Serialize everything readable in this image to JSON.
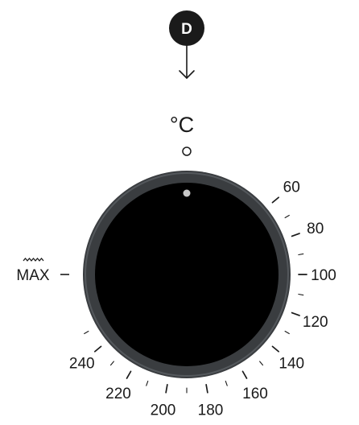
{
  "badge": {
    "letter": "D"
  },
  "unit_label": "°C",
  "max_label": "MAX",
  "heating_symbol": "heat-wave-icon",
  "temperature_labels": [
    "60",
    "80",
    "100",
    "120",
    "140",
    "160",
    "180",
    "200",
    "220",
    "240"
  ],
  "colors": {
    "knob_face": "#000000",
    "knob_rim": "#3a3d40",
    "knob_rim_light": "#54585c",
    "indicator_dot": "#c8c8c8",
    "badge_bg": "#1a1a1a",
    "ink": "#1a1a1a"
  }
}
